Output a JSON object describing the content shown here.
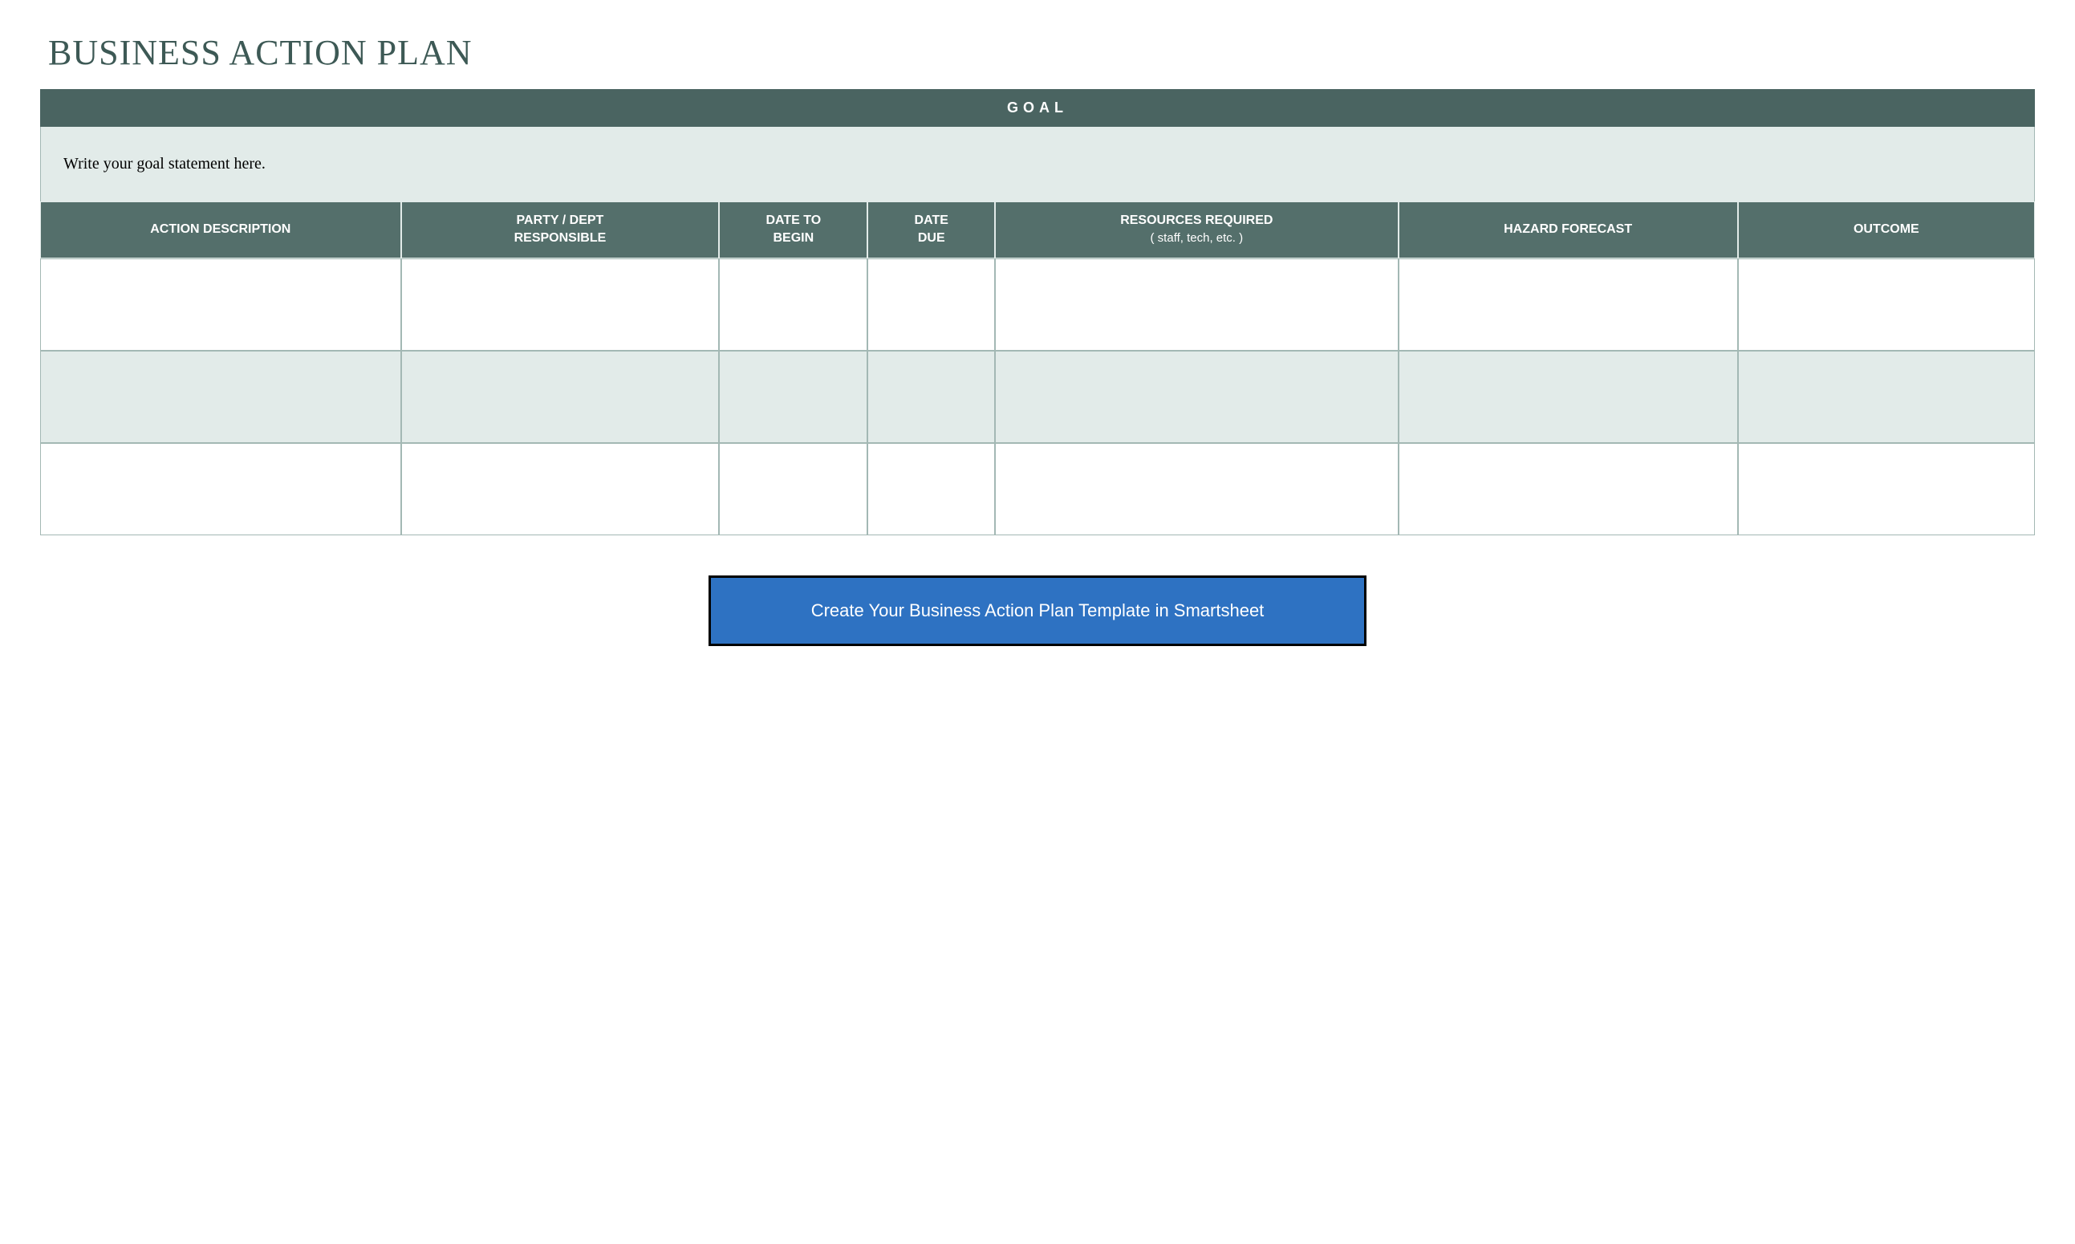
{
  "title": "BUSINESS ACTION PLAN",
  "table": {
    "goal_header": "GOAL",
    "goal_statement": "Write your goal statement here.",
    "columns": [
      {
        "label": "ACTION DESCRIPTION",
        "sublabel": ""
      },
      {
        "label": "PARTY / DEPT",
        "sublabel": "RESPONSIBLE"
      },
      {
        "label": "DATE TO",
        "sublabel": "BEGIN"
      },
      {
        "label": "DATE",
        "sublabel": "DUE"
      },
      {
        "label": "RESOURCES  REQUIRED",
        "sublabel": "( staff, tech, etc. )"
      },
      {
        "label": "HAZARD FORECAST",
        "sublabel": ""
      },
      {
        "label": "OUTCOME",
        "sublabel": ""
      }
    ],
    "column_widths_pct": [
      17,
      15,
      7,
      6,
      19,
      16,
      14
    ],
    "rows": [
      {
        "bg": "white",
        "cells": [
          "",
          "",
          "",
          "",
          "",
          "",
          ""
        ]
      },
      {
        "bg": "shaded",
        "cells": [
          "",
          "",
          "",
          "",
          "",
          "",
          ""
        ]
      },
      {
        "bg": "white",
        "cells": [
          "",
          "",
          "",
          "",
          "",
          "",
          ""
        ]
      }
    ],
    "header_bg_color": "#4a6461",
    "column_header_bg_color": "#546f6b",
    "goal_statement_bg_color": "#e2ebe9",
    "shaded_row_bg_color": "#e2ebe9",
    "white_row_bg_color": "#ffffff",
    "border_color": "#a3b8b4",
    "header_text_color": "#ffffff"
  },
  "cta": {
    "label": "Create Your Business Action Plan Template in Smartsheet",
    "bg_color": "#2e72c2",
    "border_color": "#000000",
    "text_color": "#ffffff"
  },
  "styling": {
    "title_color": "#3d5955",
    "title_font": "Georgia, serif",
    "title_fontsize": 44,
    "body_font": "Arial, sans-serif",
    "background_color": "#ffffff"
  }
}
